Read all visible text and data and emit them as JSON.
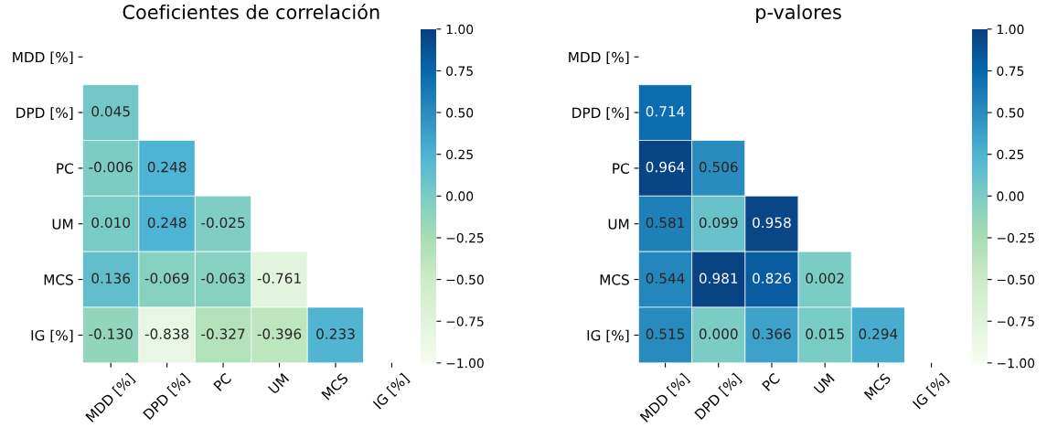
{
  "chart_data": [
    {
      "type": "heatmap",
      "title": "Coeficientes de correlación",
      "categories": [
        "MDD [%]",
        "DPD [%]",
        "PC",
        "UM",
        "MCS",
        "IG [%]"
      ],
      "y_categories": [
        "MDD [%]",
        "DPD [%]",
        "PC",
        "UM",
        "MCS",
        "IG [%]"
      ],
      "cells": [
        [
          null,
          null,
          null,
          null,
          null,
          null
        ],
        [
          0.045,
          null,
          null,
          null,
          null,
          null
        ],
        [
          -0.006,
          0.248,
          null,
          null,
          null,
          null
        ],
        [
          0.01,
          0.248,
          -0.025,
          null,
          null,
          null
        ],
        [
          0.136,
          -0.069,
          -0.063,
          -0.761,
          null,
          null
        ],
        [
          -0.13,
          -0.838,
          -0.327,
          -0.396,
          0.233,
          null
        ]
      ],
      "cell_labels": [
        [
          null,
          null,
          null,
          null,
          null,
          null
        ],
        [
          "0.045",
          null,
          null,
          null,
          null,
          null
        ],
        [
          "-0.006",
          "0.248",
          null,
          null,
          null,
          null
        ],
        [
          "0.010",
          "0.248",
          "-0.025",
          null,
          null,
          null
        ],
        [
          "0.136",
          "-0.069",
          "-0.063",
          "-0.761",
          null,
          null
        ],
        [
          "-0.130",
          "-0.838",
          "-0.327",
          "-0.396",
          "0.233",
          null
        ]
      ],
      "clim": [
        -1,
        1
      ],
      "cticks": [
        {
          "value": -1,
          "label": "−1.00"
        },
        {
          "value": -0.75,
          "label": "−0.75"
        },
        {
          "value": -0.5,
          "label": "−0.50"
        },
        {
          "value": -0.25,
          "label": "−0.25"
        },
        {
          "value": 0,
          "label": "0.00"
        },
        {
          "value": 0.25,
          "label": "0.25"
        },
        {
          "value": 0.5,
          "label": "0.50"
        },
        {
          "value": 0.75,
          "label": "0.75"
        },
        {
          "value": 1,
          "label": "1.00"
        }
      ]
    },
    {
      "type": "heatmap",
      "title": "p-valores",
      "categories": [
        "MDD [%]",
        "DPD [%]",
        "PC",
        "UM",
        "MCS",
        "IG [%]"
      ],
      "y_categories": [
        "MDD [%]",
        "DPD [%]",
        "PC",
        "UM",
        "MCS",
        "IG [%]"
      ],
      "cells": [
        [
          null,
          null,
          null,
          null,
          null,
          null
        ],
        [
          0.714,
          null,
          null,
          null,
          null,
          null
        ],
        [
          0.964,
          0.506,
          null,
          null,
          null,
          null
        ],
        [
          0.581,
          0.099,
          0.958,
          null,
          null,
          null
        ],
        [
          0.544,
          0.981,
          0.826,
          0.002,
          null,
          null
        ],
        [
          0.515,
          0.0,
          0.366,
          0.015,
          0.294,
          null
        ]
      ],
      "cell_labels": [
        [
          null,
          null,
          null,
          null,
          null,
          null
        ],
        [
          "0.714",
          null,
          null,
          null,
          null,
          null
        ],
        [
          "0.964",
          "0.506",
          null,
          null,
          null,
          null
        ],
        [
          "0.581",
          "0.099",
          "0.958",
          null,
          null,
          null
        ],
        [
          "0.544",
          "0.981",
          "0.826",
          "0.002",
          null,
          null
        ],
        [
          "0.515",
          "0.000",
          "0.366",
          "0.015",
          "0.294",
          null
        ]
      ],
      "clim": [
        -1,
        1
      ],
      "cticks": [
        {
          "value": -1,
          "label": "−1.00"
        },
        {
          "value": -0.75,
          "label": "−0.75"
        },
        {
          "value": -0.5,
          "label": "−0.50"
        },
        {
          "value": -0.25,
          "label": "−0.25"
        },
        {
          "value": 0,
          "label": "0.00"
        },
        {
          "value": 0.25,
          "label": "0.25"
        },
        {
          "value": 0.5,
          "label": "0.50"
        },
        {
          "value": 0.75,
          "label": "0.75"
        },
        {
          "value": 1,
          "label": "1.00"
        }
      ]
    }
  ]
}
